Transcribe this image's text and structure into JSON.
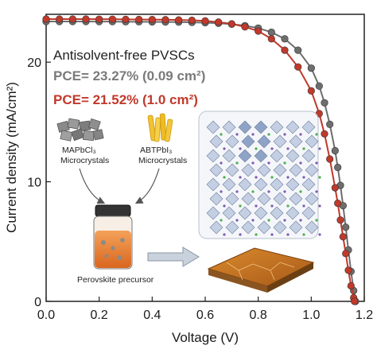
{
  "chart_data": {
    "type": "line",
    "xlabel": "Voltage (V)",
    "ylabel": "Current density (mA/cm²)",
    "xlim": [
      0.0,
      1.2
    ],
    "ylim": [
      0,
      24
    ],
    "x_ticks": [
      "0.0",
      "0.2",
      "0.4",
      "0.6",
      "0.8",
      "1.0",
      "1.2"
    ],
    "y_ticks": [
      "0",
      "10",
      "20"
    ],
    "x_tick_values": [
      0.0,
      0.2,
      0.4,
      0.6,
      0.8,
      1.0,
      1.2
    ],
    "y_tick_values": [
      0,
      10,
      20
    ],
    "series": [
      {
        "name": "PCE= 23.27% (0.09 cm²)",
        "color": "#6e6e6e",
        "points": [
          [
            0.0,
            23.4
          ],
          [
            0.05,
            23.4
          ],
          [
            0.1,
            23.4
          ],
          [
            0.15,
            23.4
          ],
          [
            0.2,
            23.39
          ],
          [
            0.25,
            23.39
          ],
          [
            0.3,
            23.38
          ],
          [
            0.35,
            23.38
          ],
          [
            0.4,
            23.37
          ],
          [
            0.45,
            23.36
          ],
          [
            0.5,
            23.35
          ],
          [
            0.55,
            23.33
          ],
          [
            0.6,
            23.3
          ],
          [
            0.65,
            23.25
          ],
          [
            0.7,
            23.18
          ],
          [
            0.75,
            23.05
          ],
          [
            0.8,
            22.85
          ],
          [
            0.85,
            22.5
          ],
          [
            0.9,
            21.95
          ],
          [
            0.95,
            21.0
          ],
          [
            1.0,
            19.5
          ],
          [
            1.03,
            18.0
          ],
          [
            1.05,
            16.6
          ],
          [
            1.07,
            14.8
          ],
          [
            1.09,
            12.6
          ],
          [
            1.1,
            11.2
          ],
          [
            1.11,
            9.7
          ],
          [
            1.12,
            8.0
          ],
          [
            1.13,
            6.2
          ],
          [
            1.14,
            4.3
          ],
          [
            1.15,
            2.5
          ],
          [
            1.16,
            0.9
          ],
          [
            1.167,
            0.0
          ]
        ]
      },
      {
        "name": "PCE= 21.52% (1.0 cm²)",
        "color": "#c0392b",
        "points": [
          [
            0.0,
            23.6
          ],
          [
            0.05,
            23.6
          ],
          [
            0.1,
            23.6
          ],
          [
            0.15,
            23.6
          ],
          [
            0.2,
            23.59
          ],
          [
            0.25,
            23.59
          ],
          [
            0.3,
            23.58
          ],
          [
            0.35,
            23.57
          ],
          [
            0.4,
            23.56
          ],
          [
            0.45,
            23.55
          ],
          [
            0.5,
            23.53
          ],
          [
            0.55,
            23.5
          ],
          [
            0.6,
            23.45
          ],
          [
            0.65,
            23.35
          ],
          [
            0.7,
            23.2
          ],
          [
            0.75,
            22.95
          ],
          [
            0.8,
            22.6
          ],
          [
            0.85,
            21.95
          ],
          [
            0.9,
            21.0
          ],
          [
            0.95,
            19.6
          ],
          [
            1.0,
            17.6
          ],
          [
            1.03,
            15.7
          ],
          [
            1.05,
            14.0
          ],
          [
            1.07,
            11.9
          ],
          [
            1.09,
            9.5
          ],
          [
            1.1,
            8.2
          ],
          [
            1.11,
            6.8
          ],
          [
            1.12,
            5.4
          ],
          [
            1.13,
            4.0
          ],
          [
            1.14,
            2.6
          ],
          [
            1.15,
            1.3
          ],
          [
            1.16,
            0.3
          ],
          [
            1.163,
            0.0
          ]
        ]
      }
    ],
    "annotations": {
      "title": "Antisolvent-free PVSCs",
      "pce_gray": "PCE= 23.27% (0.09 cm²)",
      "pce_red": "PCE= 21.52% (1.0 cm²)"
    }
  },
  "inset": {
    "mapbcl3_formula": "MAPbCl₃",
    "mapbcl3_label": "Microcrystals",
    "abtpbi3_formula": "ABTPbI₃",
    "abtpbi3_label": "Microcrystals",
    "precursor_label": "Perovskite precursor"
  },
  "colors": {
    "gray_series": "#6e6e6e",
    "red_series": "#c0392b",
    "film": "#c97a1f",
    "vial_liquid": "#e98a3a",
    "crystal_yellow": "#f2c230",
    "crystal_gray": "#8a8a8a"
  }
}
